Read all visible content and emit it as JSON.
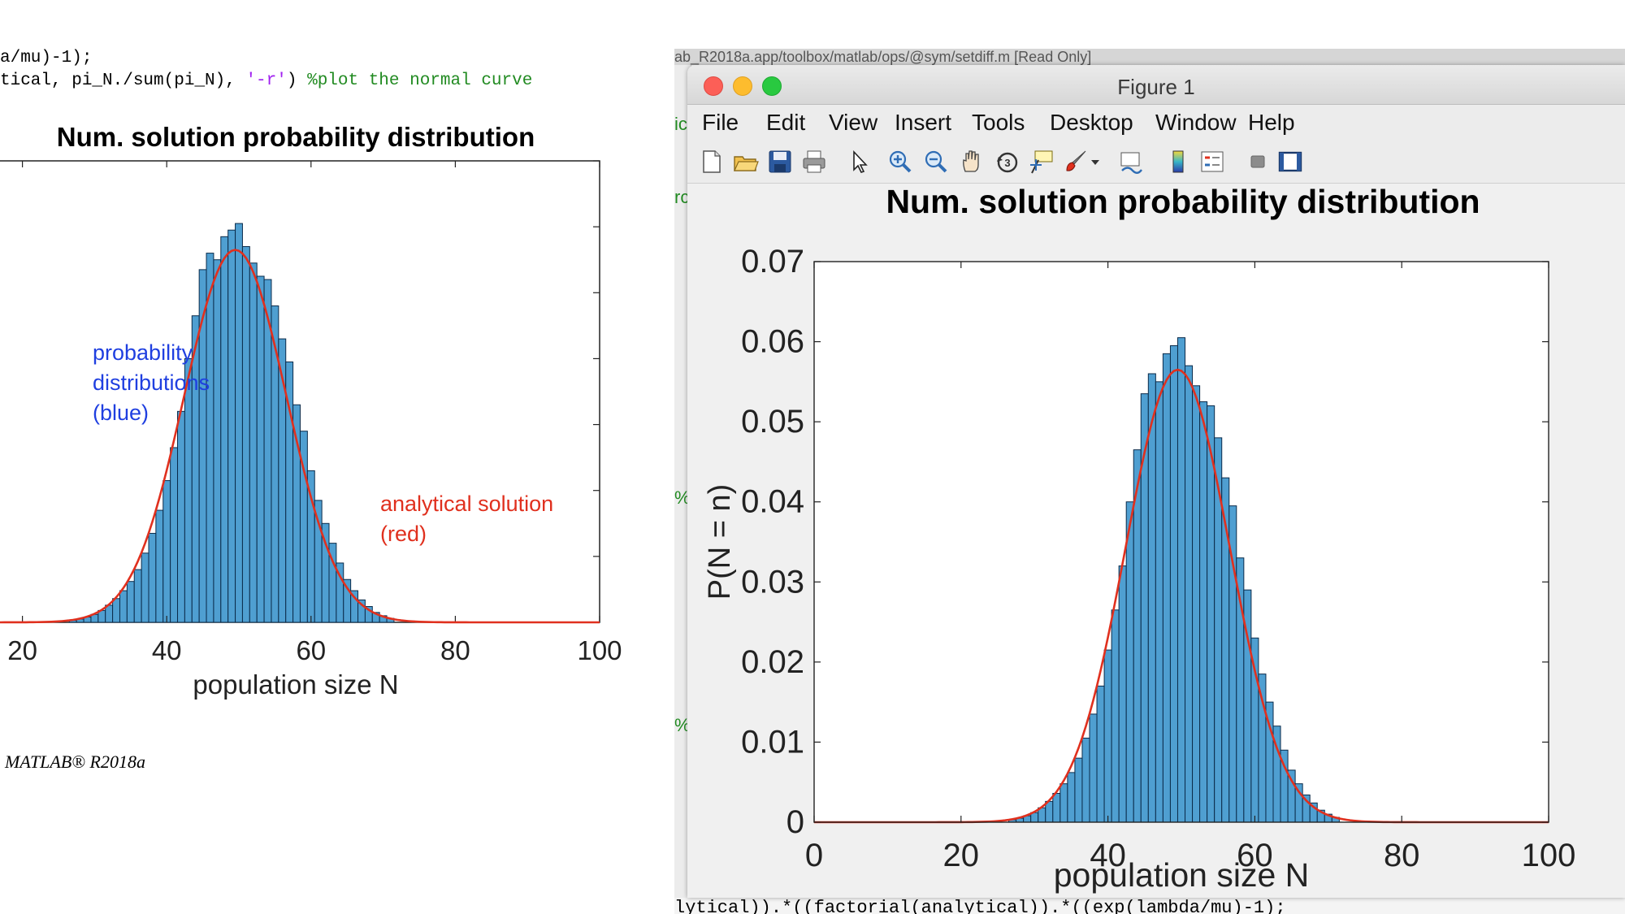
{
  "code": {
    "line1": "a/mu)-1);",
    "line2_prefix": "tical, pi_N./sum(pi_N), ",
    "line2_string": "'-r'",
    "line2_paren": ") ",
    "line2_comment": "%plot the normal curve"
  },
  "left_plot": {
    "title": "Num. solution probability distribution",
    "xlabel": "population size N",
    "x_ticks": [
      "20",
      "40",
      "60",
      "80",
      "100"
    ],
    "annotation_blue": [
      "probability",
      "distributions",
      "(blue)"
    ],
    "annotation_red": [
      "analytical solution",
      "(red)"
    ],
    "blue": "#0000ff",
    "red": "#e0301e"
  },
  "matlab_version": "MATLAB® R2018a",
  "background_text": {
    "top": "ab_R2018a.app/toolbox/matlab/ops/@sym/setdiff.m [Read Only]",
    "bottom": "lytical)).*((factorial(analytical)).*((exp(lambda/mu)-1);"
  },
  "figure_window": {
    "title": "Figure 1",
    "menu": [
      "File",
      "Edit",
      "View",
      "Insert",
      "Tools",
      "Desktop",
      "Window",
      "Help"
    ],
    "toolbar_icons": [
      "new-figure-icon",
      "open-file-icon",
      "save-icon",
      "print-icon",
      "pointer-icon",
      "zoom-in-icon",
      "zoom-out-icon",
      "pan-icon",
      "rotate-3d-icon",
      "data-cursor-icon",
      "brush-icon",
      "link-plot-icon",
      "colorbar-icon",
      "legend-icon",
      "hide-plot-tools-icon",
      "show-plot-tools-icon"
    ]
  },
  "chart_data": {
    "type": "bar",
    "title": "Num. solution probability distribution",
    "xlabel": "population size N",
    "ylabel": "P(N = n)",
    "xlim": [
      0,
      100
    ],
    "ylim": [
      0,
      0.07
    ],
    "x_ticks": [
      "0",
      "20",
      "40",
      "60",
      "80",
      "100"
    ],
    "y_ticks": [
      "0",
      "0.01",
      "0.02",
      "0.03",
      "0.04",
      "0.05",
      "0.06",
      "0.07"
    ],
    "bar_color": "#4f9fd1",
    "curve_color": "#e0301e",
    "bins": [
      27,
      28,
      29,
      30,
      31,
      32,
      33,
      34,
      35,
      36,
      37,
      38,
      39,
      40,
      41,
      42,
      43,
      44,
      45,
      46,
      47,
      48,
      49,
      50,
      51,
      52,
      53,
      54,
      55,
      56,
      57,
      58,
      59,
      60,
      61,
      62,
      63,
      64,
      65,
      66,
      67,
      68,
      69,
      70,
      71
    ],
    "values": [
      0.0003,
      0.0005,
      0.0008,
      0.0012,
      0.0018,
      0.0026,
      0.0036,
      0.0048,
      0.0062,
      0.008,
      0.0105,
      0.0135,
      0.017,
      0.0215,
      0.0265,
      0.032,
      0.04,
      0.0465,
      0.0535,
      0.056,
      0.055,
      0.0585,
      0.0595,
      0.0605,
      0.057,
      0.0545,
      0.0525,
      0.052,
      0.048,
      0.043,
      0.0395,
      0.033,
      0.029,
      0.023,
      0.0185,
      0.015,
      0.012,
      0.009,
      0.0065,
      0.0048,
      0.0034,
      0.0024,
      0.0015,
      0.001,
      0.0006
    ],
    "curve": {
      "mean": 49.5,
      "peak": 0.0565,
      "sigma": 7.1
    }
  }
}
